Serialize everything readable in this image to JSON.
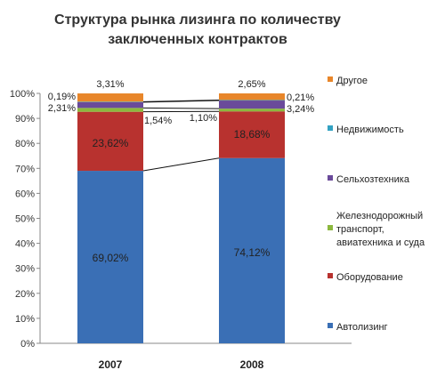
{
  "chart_data": {
    "type": "bar",
    "stacked": true,
    "title": [
      "Структура рынка лизинга по количеству",
      "заключенных контрактов"
    ],
    "categories": [
      "2007",
      "2008"
    ],
    "ylim": [
      0,
      100
    ],
    "yticks": [
      "0%",
      "10%",
      "20%",
      "30%",
      "40%",
      "50%",
      "60%",
      "70%",
      "80%",
      "90%",
      "100%"
    ],
    "grid": false,
    "legend_position": "right",
    "series": [
      {
        "name": "Автолизинг",
        "color": "#3a6fb5",
        "values": [
          69.02,
          74.12
        ],
        "labels": [
          "69,02%",
          "74,12%"
        ]
      },
      {
        "name": "Оборудование",
        "color": "#b8322f",
        "values": [
          23.62,
          18.68
        ],
        "labels": [
          "23,62%",
          "18,68%"
        ]
      },
      {
        "name": "Железнодорожный транспорт, авиатехника и суда",
        "legend_lines": [
          "Железнодорожный",
          "транспорт,",
          "авиатехника и суда"
        ],
        "color": "#8cb83e",
        "values": [
          1.54,
          1.1
        ],
        "labels": [
          "1,54%",
          "1,10%"
        ]
      },
      {
        "name": "Сельхозтехника",
        "color": "#6a4a9a",
        "values": [
          2.31,
          3.24
        ],
        "labels": [
          "2,31%",
          "3,24%"
        ]
      },
      {
        "name": "Недвижимость",
        "color": "#33a2c2",
        "values": [
          0.19,
          0.21
        ],
        "labels": [
          "0,19%",
          "0,21%"
        ]
      },
      {
        "name": "Другое",
        "color": "#e8862a",
        "values": [
          3.31,
          2.65
        ],
        "labels": [
          "3,31%",
          "2,65%"
        ]
      }
    ]
  }
}
